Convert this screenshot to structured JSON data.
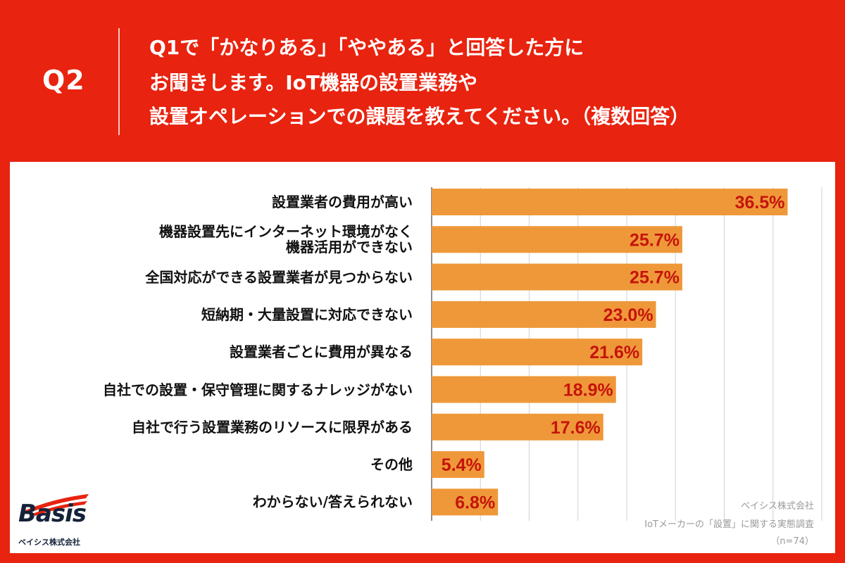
{
  "header": {
    "question_no": "Q2",
    "title_lines": [
      "Q1で「かなりある」「ややある」と回答した方に",
      "お聞きします。IoT機器の設置業務や",
      "設置オペレーションでの課題を教えてください。（複数回答）"
    ]
  },
  "colors": {
    "background": "#e8230f",
    "bar": "#ef983a",
    "value_text": "#c5140a",
    "grid": "#d0d0d0"
  },
  "chart_data": {
    "type": "bar",
    "orientation": "horizontal",
    "categories": [
      "設置業者の費用が高い",
      "機器設置先にインターネット環境がなく\n機器活用ができない",
      "全国対応ができる設置業者が見つからない",
      "短納期・大量設置に対応できない",
      "設置業者ごとに費用が異なる",
      "自社での設置・保守管理に関するナレッジがない",
      "自社で行う設置業務のリソースに限界がある",
      "その他",
      "わからない/答えられない"
    ],
    "values": [
      36.5,
      25.7,
      25.7,
      23.0,
      21.6,
      18.9,
      17.6,
      5.4,
      6.8
    ],
    "value_labels": [
      "36.5%",
      "25.7%",
      "25.7%",
      "23.0%",
      "21.6%",
      "18.9%",
      "17.6%",
      "5.4%",
      "6.8%"
    ],
    "xlim": [
      0,
      40
    ],
    "grid": true
  },
  "logo": {
    "name": "Basis",
    "subtitle": "ベイシス株式会社"
  },
  "source": {
    "company": "ベイシス株式会社",
    "survey": "IoTメーカーの「設置」に関する実態調査",
    "sample": "（n=74）"
  }
}
